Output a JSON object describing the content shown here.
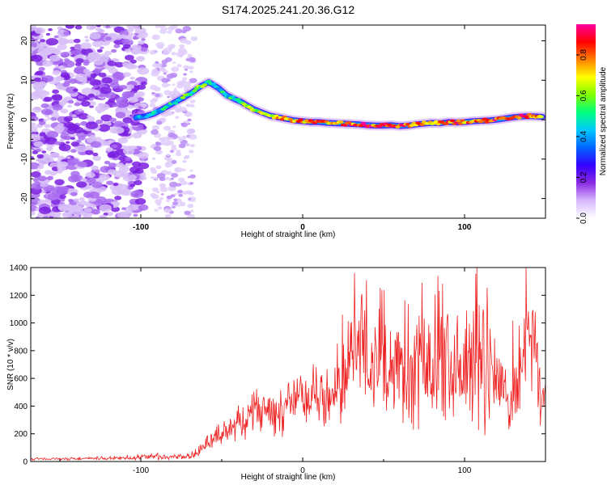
{
  "chart_data": [
    {
      "type": "heatmap",
      "title": "S174.2025.241.20.36.G12",
      "xlabel": "Height of straight line (km)",
      "ylabel": "Frequency (Hz)",
      "xlim": [
        -168,
        150
      ],
      "ylim": [
        -25,
        24
      ],
      "x_ticks": [
        -100,
        0,
        100
      ],
      "x_tick_labels": [
        "-100",
        "0",
        "100"
      ],
      "y_ticks": [
        20,
        10,
        0,
        -10,
        -20
      ],
      "y_tick_labels": [
        "20",
        "10",
        "0",
        "-10",
        "-20"
      ],
      "colorbar": {
        "label": "Normalized spectral amplitude",
        "range": [
          0.0,
          0.95
        ],
        "ticks": [
          0.0,
          0.2,
          0.4,
          0.6,
          0.8
        ],
        "tick_labels": [
          "0.0",
          "0.2",
          "0.4",
          "0.6",
          "0.8"
        ],
        "colors": [
          "#ffffff",
          "#d9b8ff",
          "#8a2be2",
          "#3300ff",
          "#0066ff",
          "#00c8ff",
          "#00ff80",
          "#80ff00",
          "#ffff00",
          "#ff8000",
          "#ff0000",
          "#ff00a0"
        ]
      },
      "ridge": {
        "x": [
          -103,
          -98,
          -92,
          -86,
          -80,
          -74,
          -68,
          -63,
          -58,
          -52,
          -47,
          -42,
          -38,
          -34,
          -30,
          -25,
          -20,
          -15,
          -10,
          -5,
          0,
          5,
          10,
          15,
          20,
          25,
          30,
          35,
          40,
          45,
          50,
          55,
          60,
          65,
          70,
          75,
          80,
          85,
          90,
          95,
          100,
          105,
          110,
          115,
          120,
          125,
          130,
          135,
          140,
          145,
          148
        ],
        "y": [
          0.5,
          0.8,
          1.5,
          2.8,
          4.2,
          5.5,
          7.0,
          8.5,
          9.5,
          8.0,
          6.2,
          5.2,
          4.5,
          3.5,
          2.6,
          1.8,
          1.0,
          0.6,
          0.2,
          -0.2,
          -0.4,
          -0.6,
          -0.6,
          -0.8,
          -0.9,
          -1.0,
          -1.1,
          -1.2,
          -1.4,
          -1.5,
          -1.5,
          -1.4,
          -1.6,
          -1.5,
          -1.2,
          -1.0,
          -0.8,
          -0.9,
          -0.6,
          -0.7,
          -0.6,
          -0.4,
          -0.3,
          -0.2,
          0.0,
          0.3,
          0.6,
          0.8,
          0.9,
          0.8,
          0.7
        ],
        "amplitude": [
          0.35,
          0.4,
          0.45,
          0.5,
          0.5,
          0.55,
          0.55,
          0.6,
          0.55,
          0.5,
          0.5,
          0.55,
          0.55,
          0.6,
          0.65,
          0.7,
          0.75,
          0.75,
          0.8,
          0.8,
          0.8,
          0.85,
          0.85,
          0.8,
          0.8,
          0.85,
          0.85,
          0.9,
          0.9,
          0.85,
          0.85,
          0.85,
          0.9,
          0.85,
          0.8,
          0.8,
          0.8,
          0.8,
          0.85,
          0.85,
          0.8,
          0.8,
          0.85,
          0.85,
          0.9,
          0.9,
          0.9,
          0.9,
          0.85,
          0.8,
          0.7
        ]
      }
    },
    {
      "type": "line",
      "xlabel": "Height of straight line (km)",
      "ylabel": "SNR (10 * v/v)",
      "xlim": [
        -168,
        150
      ],
      "ylim": [
        0,
        1400
      ],
      "x_ticks": [
        -100,
        0,
        100
      ],
      "x_tick_labels": [
        "-100",
        "0",
        "100"
      ],
      "y_ticks": [
        0,
        200,
        400,
        600,
        800,
        1000,
        1200,
        1400
      ],
      "y_tick_labels": [
        "0",
        "200",
        "400",
        "600",
        "800",
        "1000",
        "1200",
        "1400"
      ],
      "color": "#ee2222",
      "envelope": {
        "x": [
          -168,
          -140,
          -110,
          -90,
          -80,
          -72,
          -65,
          -58,
          -50,
          -42,
          -35,
          -28,
          -20,
          -12,
          -5,
          0,
          5,
          12,
          18,
          25,
          30,
          40,
          50,
          60,
          70,
          80,
          90,
          100,
          108,
          115,
          120,
          125,
          130,
          136,
          142,
          146,
          150
        ],
        "mean": [
          20,
          20,
          25,
          40,
          30,
          30,
          60,
          150,
          200,
          260,
          330,
          380,
          380,
          400,
          420,
          450,
          480,
          440,
          540,
          650,
          750,
          720,
          680,
          700,
          660,
          630,
          660,
          640,
          700,
          640,
          600,
          520,
          480,
          650,
          900,
          600,
          450
        ],
        "amp": [
          10,
          10,
          15,
          25,
          20,
          20,
          40,
          80,
          100,
          120,
          150,
          180,
          180,
          200,
          200,
          220,
          240,
          230,
          280,
          330,
          380,
          400,
          400,
          420,
          420,
          400,
          450,
          420,
          450,
          400,
          380,
          350,
          320,
          400,
          450,
          380,
          260
        ]
      }
    }
  ]
}
